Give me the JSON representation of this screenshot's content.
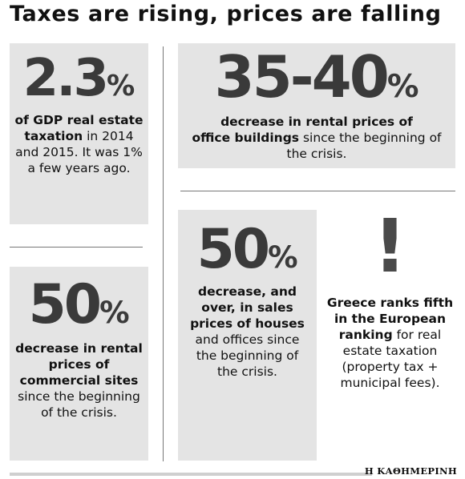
{
  "title": "Taxes are rising, prices are falling",
  "stats": [
    {
      "value": "2.3",
      "unit": "%",
      "desc_bold": "of GDP real estate taxation",
      "desc_rest": " in 2014 and 2015. It was 1% a few years ago."
    },
    {
      "value": "35-40",
      "unit": "%",
      "desc_bold_a": "decrease in rental prices of",
      "desc_bold_b": "office buildings",
      "desc_rest": " since the beginning of the crisis."
    },
    {
      "value": "50",
      "unit": "%",
      "desc_bold": "decrease in rental prices of commercial sites",
      "desc_rest": " since the beginning of the crisis."
    },
    {
      "value": "50",
      "unit": "%",
      "desc_bold": "decrease, and over, in sales prices of houses",
      "desc_rest": " and offices since the beginning of the crisis."
    }
  ],
  "alert": {
    "icon": "exclamation-icon",
    "symbol": "!",
    "desc_bold": "Greece ranks fifth in the European ranking",
    "desc_rest": " for real estate taxation (property tax + municipal fees)."
  },
  "footer": "Η ΚΑΘΗΜΕΡΙΝΗ"
}
